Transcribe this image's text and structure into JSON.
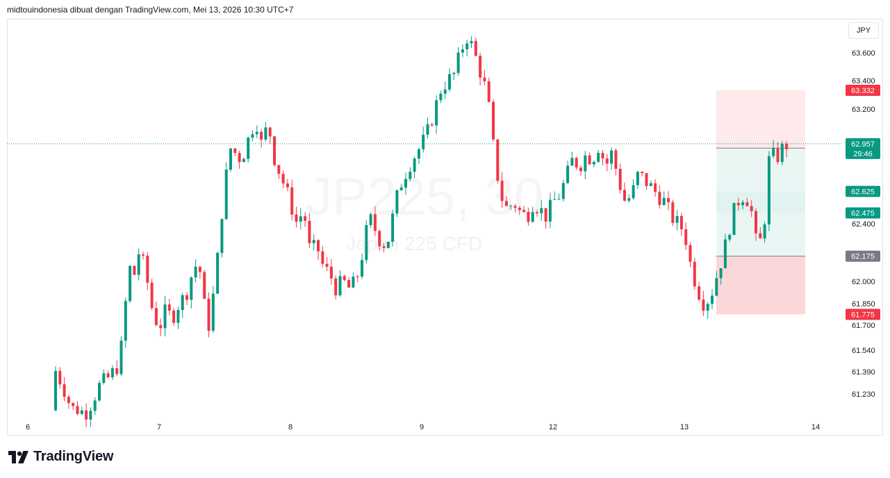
{
  "header": {
    "author": "midtouindonesia",
    "made_with": "dibuat dengan TradingView.com,",
    "timestamp": "Mei 13, 2026 10:30 UTC+7"
  },
  "watermark": {
    "symbol": "JP225, 30",
    "description": "Japan 225 CFD"
  },
  "currency": "JPY",
  "brand": "TradingView",
  "colors": {
    "up": "#089981",
    "down": "#f23645",
    "axis_text": "#131722",
    "grid": "#e0e3eb",
    "stop_zone": "#f23645",
    "target_zone": "#089981",
    "neutral_label": "#787b86"
  },
  "chart_data": {
    "type": "candlestick",
    "instrument": "Japan 225 CFD",
    "interval": "30",
    "x_ticks": [
      "6",
      "7",
      "8",
      "9",
      "12",
      "13",
      "14"
    ],
    "y_ticks": [
      "61.230",
      "61.390",
      "61.540",
      "61.700",
      "61.850",
      "62.000",
      "62.400",
      "63.200",
      "63.400",
      "63.600"
    ],
    "ylim": [
      61.06,
      63.8
    ],
    "current_price": {
      "price": "62.957",
      "countdown": "29:46"
    },
    "price_labels": [
      {
        "value": "63.332",
        "kind": "stop"
      },
      {
        "value": "62.926",
        "kind": "entry"
      },
      {
        "value": "62.625",
        "kind": "target"
      },
      {
        "value": "62.475",
        "kind": "target"
      },
      {
        "value": "62.175",
        "kind": "entry"
      },
      {
        "value": "61.775",
        "kind": "stop"
      }
    ],
    "positions": [
      {
        "type": "short",
        "entry": 62.926,
        "stop": 63.332,
        "target": 62.625
      },
      {
        "type": "long",
        "entry": 62.175,
        "stop": 61.775,
        "target": 62.475
      }
    ],
    "close_path": [
      [
        "6",
        61.1
      ],
      [
        "6.1",
        61.25
      ],
      [
        "6.2",
        61.42
      ],
      [
        "6.27",
        61.28
      ],
      [
        "6.33",
        61.12
      ],
      [
        "6.45",
        61.08
      ],
      [
        "6.55",
        61.3
      ],
      [
        "6.62",
        61.35
      ],
      [
        "6.7",
        61.45
      ],
      [
        "6.75",
        61.9
      ],
      [
        "6.78",
        62.1
      ],
      [
        "6.8",
        62.0
      ],
      [
        "6.85",
        62.22
      ],
      [
        "6.9",
        62.05
      ],
      [
        "6.95",
        61.8
      ],
      [
        "7.0",
        61.68
      ],
      [
        "7.05",
        61.8
      ],
      [
        "7.1",
        61.75
      ],
      [
        "7.15",
        61.85
      ],
      [
        "7.2",
        61.9
      ],
      [
        "7.25",
        62.05
      ],
      [
        "7.3",
        62.15
      ],
      [
        "7.35",
        61.8
      ],
      [
        "7.38",
        61.7
      ],
      [
        "7.42",
        61.95
      ],
      [
        "7.45",
        62.2
      ],
      [
        "7.48",
        62.5
      ],
      [
        "7.52",
        62.8
      ],
      [
        "7.55",
        62.95
      ],
      [
        "7.6",
        62.85
      ],
      [
        "7.65",
        62.9
      ],
      [
        "7.7",
        63.05
      ],
      [
        "7.74",
        63.12
      ],
      [
        "7.78",
        62.95
      ],
      [
        "7.83",
        63.1
      ],
      [
        "7.88",
        62.85
      ],
      [
        "7.92",
        62.75
      ],
      [
        "7.98",
        62.6
      ],
      [
        "8.05",
        62.4
      ],
      [
        "8.1",
        62.5
      ],
      [
        "8.15",
        62.2
      ],
      [
        "8.2",
        62.25
      ],
      [
        "8.25",
        62.1
      ],
      [
        "8.3",
        62.05
      ],
      [
        "8.35",
        61.95
      ],
      [
        "8.4",
        62.0
      ],
      [
        "8.45",
        61.95
      ],
      [
        "8.5",
        62.0
      ],
      [
        "8.55",
        62.2
      ],
      [
        "8.6",
        62.45
      ],
      [
        "8.65",
        62.35
      ],
      [
        "8.7",
        62.25
      ],
      [
        "8.75",
        62.3
      ],
      [
        "8.8",
        62.55
      ],
      [
        "8.85",
        62.7
      ],
      [
        "8.9",
        62.8
      ],
      [
        "8.95",
        62.88
      ],
      [
        "9.0",
        62.95
      ],
      [
        "9.05",
        63.05
      ],
      [
        "9.1",
        63.2
      ],
      [
        "9.15",
        63.35
      ],
      [
        "9.2",
        63.4
      ],
      [
        "9.25",
        63.45
      ],
      [
        "9.3",
        63.62
      ],
      [
        "9.35",
        63.72
      ],
      [
        "9.4",
        63.6
      ],
      [
        "9.45",
        63.45
      ],
      [
        "9.5",
        63.3
      ],
      [
        "9.55",
        62.9
      ],
      [
        "9.6",
        62.6
      ],
      [
        "9.65",
        62.5
      ],
      [
        "9.7",
        62.55
      ],
      [
        "9.75",
        62.48
      ],
      [
        "9.8",
        62.45
      ],
      [
        "9.85",
        62.55
      ],
      [
        "9.9",
        62.5
      ],
      [
        "9.95",
        62.45
      ],
      [
        "10.0",
        62.55
      ],
      [
        "10.05",
        62.6
      ],
      [
        "10.1",
        62.72
      ],
      [
        "10.15",
        62.85
      ],
      [
        "10.2",
        62.8
      ],
      [
        "10.25",
        62.88
      ],
      [
        "10.3",
        62.85
      ],
      [
        "10.35",
        62.95
      ],
      [
        "10.4",
        62.8
      ],
      [
        "10.45",
        62.9
      ],
      [
        "10.5",
        62.7
      ],
      [
        "10.55",
        62.55
      ],
      [
        "10.6",
        62.6
      ],
      [
        "10.65",
        62.75
      ],
      [
        "10.7",
        62.7
      ],
      [
        "10.75",
        62.65
      ],
      [
        "10.8",
        62.6
      ],
      [
        "10.85",
        62.55
      ],
      [
        "10.9",
        62.45
      ],
      [
        "10.95",
        62.4
      ],
      [
        "11.0",
        62.35
      ],
      [
        "11.05",
        62.1
      ],
      [
        "11.1",
        61.95
      ],
      [
        "11.15",
        61.85
      ],
      [
        "11.2",
        61.9
      ],
      [
        "11.25",
        62.05
      ],
      [
        "11.3",
        62.2
      ],
      [
        "11.35",
        62.4
      ],
      [
        "11.4",
        62.55
      ],
      [
        "11.45",
        62.6
      ],
      [
        "11.5",
        62.55
      ],
      [
        "11.55",
        62.25
      ],
      [
        "11.6",
        62.3
      ],
      [
        "11.65",
        62.9
      ],
      [
        "11.7",
        62.85
      ],
      [
        "11.75",
        62.93
      ],
      [
        "11.78",
        62.95
      ]
    ]
  }
}
